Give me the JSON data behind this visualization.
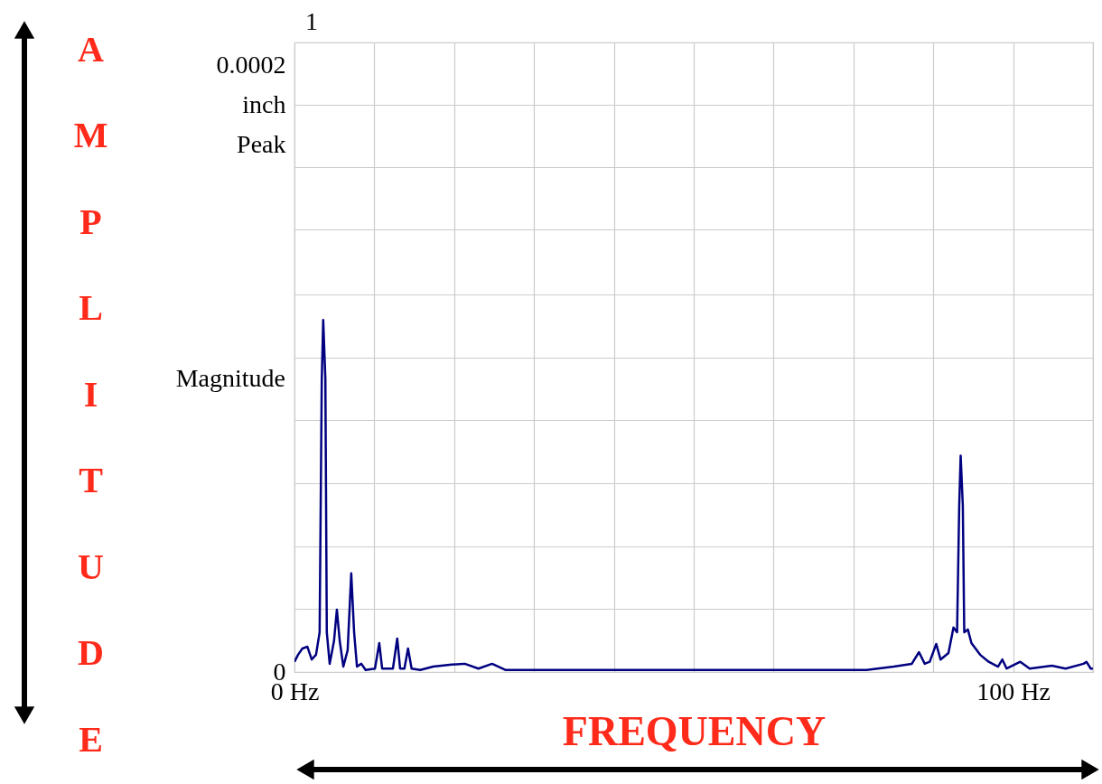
{
  "chart_data": {
    "type": "line",
    "xlabel": "FREQUENCY",
    "ylabel": "AMPLITUDE",
    "annotations": [
      "1",
      "Magnitude"
    ],
    "xlim": [
      0,
      111.11
    ],
    "ylim": [
      0,
      0.000222
    ],
    "xticks": [
      {
        "value": 0,
        "label": "0  Hz"
      },
      {
        "value": 11.11,
        "label": null
      },
      {
        "value": 22.22,
        "label": null
      },
      {
        "value": 33.33,
        "label": null
      },
      {
        "value": 44.44,
        "label": null
      },
      {
        "value": 55.56,
        "label": null
      },
      {
        "value": 66.67,
        "label": null
      },
      {
        "value": 77.78,
        "label": null
      },
      {
        "value": 88.89,
        "label": null
      },
      {
        "value": 100,
        "label": "100  Hz"
      },
      {
        "value": 111.11,
        "label": null
      }
    ],
    "yticks": [
      {
        "value": 0,
        "label": "0"
      },
      {
        "value": 2.22e-05,
        "label": null
      },
      {
        "value": 4.44e-05,
        "label": null
      },
      {
        "value": 6.67e-05,
        "label": null
      },
      {
        "value": 8.89e-05,
        "label": null
      },
      {
        "value": 0.000111,
        "label": null
      },
      {
        "value": 0.000133,
        "label": null
      },
      {
        "value": 0.000156,
        "label": null
      },
      {
        "value": 0.000178,
        "label": null
      },
      {
        "value": 0.0002,
        "label": "0.0002 inch Peak"
      },
      {
        "value": 0.000222,
        "label": null
      }
    ],
    "grid": true,
    "marker": "none",
    "line_style": "solid",
    "x": [
      0,
      0.5,
      1.1,
      1.8,
      2.4,
      3.0,
      3.5,
      3.8,
      4.0,
      4.3,
      4.5,
      4.9,
      5.5,
      5.9,
      6.3,
      6.8,
      7.4,
      7.9,
      8.3,
      8.7,
      9.3,
      9.9,
      11.2,
      11.8,
      12.2,
      13.7,
      14.3,
      14.7,
      15.3,
      15.8,
      16.3,
      17.5,
      19.3,
      21.9,
      23.7,
      25.6,
      27.5,
      29.4,
      34.4,
      40.7,
      47.0,
      53.3,
      59.5,
      65.8,
      72.1,
      79.6,
      83.4,
      85.9,
      86.9,
      87.7,
      88.4,
      89.3,
      89.9,
      91.0,
      91.7,
      92.2,
      92.5,
      92.7,
      93.0,
      93.2,
      93.7,
      94.2,
      95.4,
      96.6,
      97.9,
      98.5,
      99.1,
      101.0,
      102.3,
      105.4,
      107.3,
      109.8,
      110.2,
      110.8,
      111.1
    ],
    "series": [
      {
        "color": "#000080",
        "values": [
          3.6e-06,
          6.1e-06,
          8.3e-06,
          8.9e-06,
          4.4e-06,
          6.1e-06,
          1.4e-05,
          0.0001034,
          0.0001241,
          0.0001034,
          1.4e-05,
          2.9e-06,
          1.09e-05,
          2.2e-05,
          1.09e-05,
          1.9e-06,
          7.7e-06,
          3.48e-05,
          1.4e-05,
          1.9e-06,
          2.9e-06,
          7e-07,
          1.2e-06,
          1.02e-05,
          1.2e-06,
          1.2e-06,
          1.18e-05,
          1.2e-06,
          1.2e-06,
          8.3e-06,
          1.2e-06,
          7e-07,
          1.9e-06,
          2.6e-06,
          2.9e-06,
          1.2e-06,
          2.9e-06,
          7e-07,
          7e-07,
          7e-07,
          7e-07,
          7e-07,
          7e-07,
          7e-07,
          7e-07,
          7e-07,
          1.9e-06,
          2.9e-06,
          7e-06,
          2.9e-06,
          3.6e-06,
          9.9e-06,
          4.4e-06,
          6.7e-06,
          1.57e-05,
          1.4e-05,
          5.87e-05,
          7.63e-05,
          5.87e-05,
          1.4e-05,
          1.5e-05,
          1.02e-05,
          6.1e-06,
          3.6e-06,
          1.9e-06,
          4.4e-06,
          1.2e-06,
          3.6e-06,
          1.2e-06,
          2.2e-06,
          1.2e-06,
          2.9e-06,
          3.6e-06,
          1.2e-06,
          1.2e-06
        ]
      }
    ]
  }
}
